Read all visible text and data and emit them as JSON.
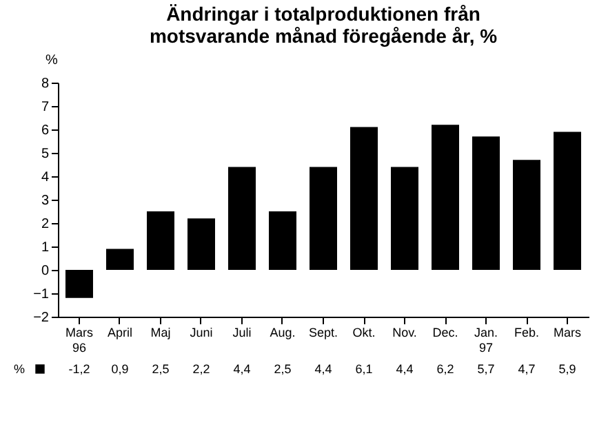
{
  "chart_data": {
    "type": "bar",
    "title": [
      "Ändringar i totalproduktionen från",
      "motsvarande månad föregående år, %"
    ],
    "ylabel": "%",
    "categories": [
      "Mars 96",
      "April",
      "Maj",
      "Juni",
      "Juli",
      "Aug.",
      "Sept.",
      "Okt.",
      "Nov.",
      "Dec.",
      "Jan. 97",
      "Feb.",
      "Mars"
    ],
    "series": [
      {
        "name": "%",
        "color": "#000000",
        "values": [
          -1.2,
          0.9,
          2.5,
          2.2,
          4.4,
          2.5,
          4.4,
          6.1,
          4.4,
          6.2,
          5.7,
          4.7,
          5.9
        ],
        "value_labels": [
          "-1,2",
          "0,9",
          "2,5",
          "2,2",
          "4,4",
          "2,5",
          "4,4",
          "6,1",
          "4,4",
          "6,2",
          "5,7",
          "4,7",
          "5,9"
        ]
      }
    ],
    "ylim": [
      -2,
      8
    ],
    "yticks": [
      -2,
      -1,
      0,
      1,
      2,
      3,
      4,
      5,
      6,
      7,
      8
    ],
    "grid": false
  }
}
